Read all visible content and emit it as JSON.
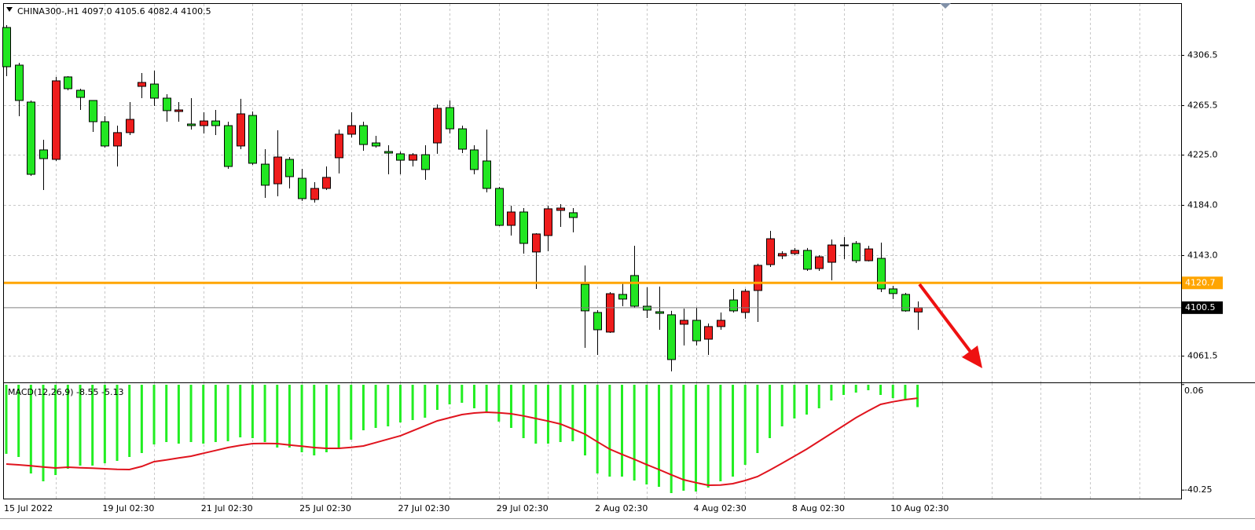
{
  "chart_data": [
    {
      "type": "candlestick",
      "title": "CHINA300-,H1  4097.0 4105.6 4082.4 4100.5",
      "categories": [
        "15 Jul 2022",
        null,
        null,
        null,
        null,
        null,
        null,
        null,
        "19 Jul 02:30",
        null,
        null,
        null,
        null,
        null,
        null,
        null,
        "21 Jul 02:30",
        null,
        null,
        null,
        null,
        null,
        null,
        null,
        "25 Jul 02:30",
        null,
        null,
        null,
        null,
        null,
        null,
        null,
        "27 Jul 02:30",
        null,
        null,
        null,
        null,
        null,
        null,
        null,
        "29 Jul 02:30",
        null,
        null,
        null,
        null,
        null,
        null,
        null,
        "2 Aug 02:30",
        null,
        null,
        null,
        null,
        null,
        null,
        null,
        "4 Aug 02:30",
        null,
        null,
        null,
        null,
        null,
        null,
        null,
        "8 Aug 02:30",
        null,
        null,
        null,
        null,
        null,
        null,
        null,
        "10 Aug 02:30",
        null,
        null
      ],
      "open": [
        4328.9,
        4298.2,
        4268.1,
        4229.1,
        4221.4,
        4288.6,
        4277.7,
        4269.4,
        4252.1,
        4232.3,
        4243.2,
        4280.9,
        4282.8,
        4271.3,
        4260.4,
        4250.2,
        4248.9,
        4252.7,
        4248.9,
        4232.3,
        4257.2,
        4217.5,
        4201.5,
        4221.4,
        4206.0,
        4188.7,
        4197.7,
        4222.7,
        4241.9,
        4248.9,
        4234.8,
        4227.8,
        4225.9,
        4220.7,
        4225.2,
        4234.8,
        4263.6,
        4246.3,
        4229.1,
        4220.1,
        4197.7,
        4167.6,
        4178.5,
        4145.9,
        4159.3,
        4179.8,
        4177.9,
        4119.6,
        4096.6,
        4080.6,
        4111.3,
        4126.7,
        4101.7,
        4097.2,
        4094.7,
        4087.0,
        4090.2,
        4074.8,
        4085.1,
        4106.8,
        4096.6,
        4114.5,
        4135.6,
        4142.7,
        4144.6,
        4147.2,
        4132.4,
        4137.5,
        4151.6,
        4152.9,
        4138.8,
        4140.7,
        4115.8,
        4111.3,
        4097.0
      ],
      "high": [
        4330.8,
        4300.1,
        4269.4,
        4237.4,
        4288.6,
        4289.2,
        4279.0,
        4269.4,
        4256.6,
        4248.9,
        4268.1,
        4291.8,
        4293.7,
        4274.5,
        4268.1,
        4271.3,
        4259.8,
        4261.7,
        4252.1,
        4270.7,
        4260.4,
        4229.7,
        4245.1,
        4223.3,
        4213.7,
        4202.8,
        4215.6,
        4245.7,
        4259.8,
        4252.1,
        4240.6,
        4232.9,
        4227.8,
        4226.5,
        4232.9,
        4266.2,
        4269.4,
        4248.9,
        4232.9,
        4245.7,
        4199.0,
        4183.6,
        4181.7,
        4161.2,
        4183.6,
        4184.9,
        4181.7,
        4134.9,
        4098.5,
        4113.2,
        4120.9,
        4151.0,
        4117.1,
        4117.7,
        4097.9,
        4099.8,
        4100.4,
        4087.6,
        4096.6,
        4115.8,
        4115.8,
        4136.3,
        4163.1,
        4146.5,
        4149.1,
        4149.1,
        4143.3,
        4156.1,
        4158.0,
        4154.8,
        4151.0,
        4153.5,
        4118.3,
        4112.6,
        4105.6
      ],
      "low": [
        4289.2,
        4256.6,
        4207.9,
        4196.4,
        4220.1,
        4277.7,
        4261.7,
        4243.8,
        4231.0,
        4215.6,
        4241.2,
        4271.3,
        4264.9,
        4252.1,
        4252.1,
        4245.7,
        4242.5,
        4241.2,
        4213.7,
        4229.7,
        4216.9,
        4190.0,
        4191.3,
        4197.7,
        4187.5,
        4186.2,
        4196.4,
        4209.9,
        4239.3,
        4228.4,
        4231.0,
        4209.2,
        4209.2,
        4215.6,
        4204.7,
        4225.9,
        4242.5,
        4226.5,
        4209.2,
        4194.5,
        4167.0,
        4159.3,
        4144.6,
        4115.8,
        4146.5,
        4166.3,
        4161.9,
        4067.8,
        4062.0,
        4079.9,
        4101.7,
        4100.4,
        4092.1,
        4082.5,
        4048.6,
        4069.7,
        4069.7,
        4062.0,
        4082.5,
        4096.6,
        4091.5,
        4088.9,
        4133.7,
        4140.1,
        4143.3,
        4130.5,
        4130.5,
        4122.8,
        4140.1,
        4136.9,
        4138.2,
        4113.2,
        4107.5,
        4097.2,
        4082.4
      ],
      "close": [
        4296.9,
        4269.4,
        4209.2,
        4222.0,
        4285.4,
        4279.0,
        4271.9,
        4252.1,
        4232.3,
        4243.2,
        4254.0,
        4284.1,
        4271.3,
        4261.1,
        4261.7,
        4248.9,
        4252.7,
        4248.9,
        4215.6,
        4258.5,
        4218.2,
        4200.3,
        4223.3,
        4207.3,
        4189.4,
        4197.7,
        4206.7,
        4241.9,
        4248.9,
        4233.5,
        4232.3,
        4226.5,
        4220.7,
        4225.2,
        4213.1,
        4263.0,
        4246.3,
        4229.7,
        4213.1,
        4197.7,
        4167.6,
        4178.5,
        4152.9,
        4160.6,
        4181.1,
        4181.7,
        4174.0,
        4097.9,
        4082.5,
        4111.9,
        4107.5,
        4101.7,
        4098.5,
        4095.9,
        4058.2,
        4090.2,
        4073.5,
        4085.1,
        4090.2,
        4097.9,
        4113.9,
        4135.0,
        4156.7,
        4144.6,
        4147.2,
        4131.8,
        4142.0,
        4151.6,
        4151.0,
        4138.8,
        4148.4,
        4115.8,
        4112.0,
        4097.9,
        4100.5
      ],
      "up_color": "#ee1c1c",
      "down_color": "#22e622",
      "ylim": [
        4039.6,
        4348.1
      ],
      "yticks": [
        4306.5,
        4265.5,
        {
          "value": 4225,
          "label": "4225.0"
        },
        {
          "value": 4184,
          "label": "4184.0"
        },
        {
          "value": 4143,
          "label": "4143.0"
        },
        4061.5
      ],
      "level_line": {
        "value": 4120.7,
        "color": "#ffa500"
      },
      "last_price": 4100.5,
      "grid": true
    },
    {
      "type": "macd",
      "title": "MACD(12,26,9) -8.55 -5.13",
      "series": [
        {
          "kind": "histogram",
          "color": "#22ee22",
          "values": [
            -26.4,
            -27.6,
            -33.9,
            -36.9,
            -34.5,
            -32.1,
            -30.9,
            -30.9,
            -30.0,
            -29.1,
            -27.6,
            -26.1,
            -22.8,
            -21.9,
            -22.5,
            -21.9,
            -22.5,
            -21.9,
            -21.6,
            -20.1,
            -20.4,
            -21.9,
            -24.0,
            -24.0,
            -25.8,
            -27.0,
            -25.8,
            -24.6,
            -21.0,
            -17.4,
            -16.5,
            -15.9,
            -14.4,
            -13.5,
            -12.6,
            -9.6,
            -7.5,
            -6.9,
            -9.0,
            -10.5,
            -14.1,
            -16.5,
            -20.4,
            -22.5,
            -22.5,
            -21.9,
            -21.6,
            -27.0,
            -33.9,
            -35.1,
            -35.1,
            -36.6,
            -38.1,
            -39.0,
            -41.4,
            -40.5,
            -40.8,
            -39.3,
            -36.9,
            -35.1,
            -30.6,
            -26.1,
            -20.4,
            -15.9,
            -12.9,
            -11.4,
            -9.0,
            -6.0,
            -3.9,
            -3.0,
            -2.1,
            -3.9,
            -5.1,
            -6.0,
            -8.55
          ]
        },
        {
          "kind": "line",
          "color": "#e0141e",
          "values": [
            -30.3,
            -30.6,
            -31.0,
            -31.4,
            -31.8,
            -31.5,
            -31.7,
            -31.9,
            -32.1,
            -32.3,
            -32.4,
            -31.2,
            -29.4,
            -28.7,
            -28.0,
            -27.3,
            -26.2,
            -25.1,
            -24.0,
            -23.2,
            -22.5,
            -22.4,
            -22.5,
            -23.0,
            -23.5,
            -24.0,
            -24.3,
            -24.3,
            -23.9,
            -23.4,
            -22.1,
            -20.8,
            -19.5,
            -17.6,
            -15.7,
            -13.8,
            -12.6,
            -11.4,
            -10.8,
            -10.5,
            -10.7,
            -11.1,
            -11.9,
            -12.9,
            -13.9,
            -15.0,
            -16.9,
            -18.9,
            -21.8,
            -24.6,
            -26.6,
            -28.5,
            -30.5,
            -32.4,
            -34.4,
            -36.3,
            -37.4,
            -38.4,
            -38.3,
            -37.8,
            -36.6,
            -35.1,
            -32.6,
            -30.0,
            -27.3,
            -24.6,
            -21.6,
            -18.6,
            -15.6,
            -12.6,
            -10.0,
            -7.5,
            -6.5,
            -5.7,
            -5.13
          ]
        }
      ],
      "ylim": [
        -43.5,
        0.6
      ],
      "yticks": [
        0.06,
        -40.25
      ]
    }
  ]
}
